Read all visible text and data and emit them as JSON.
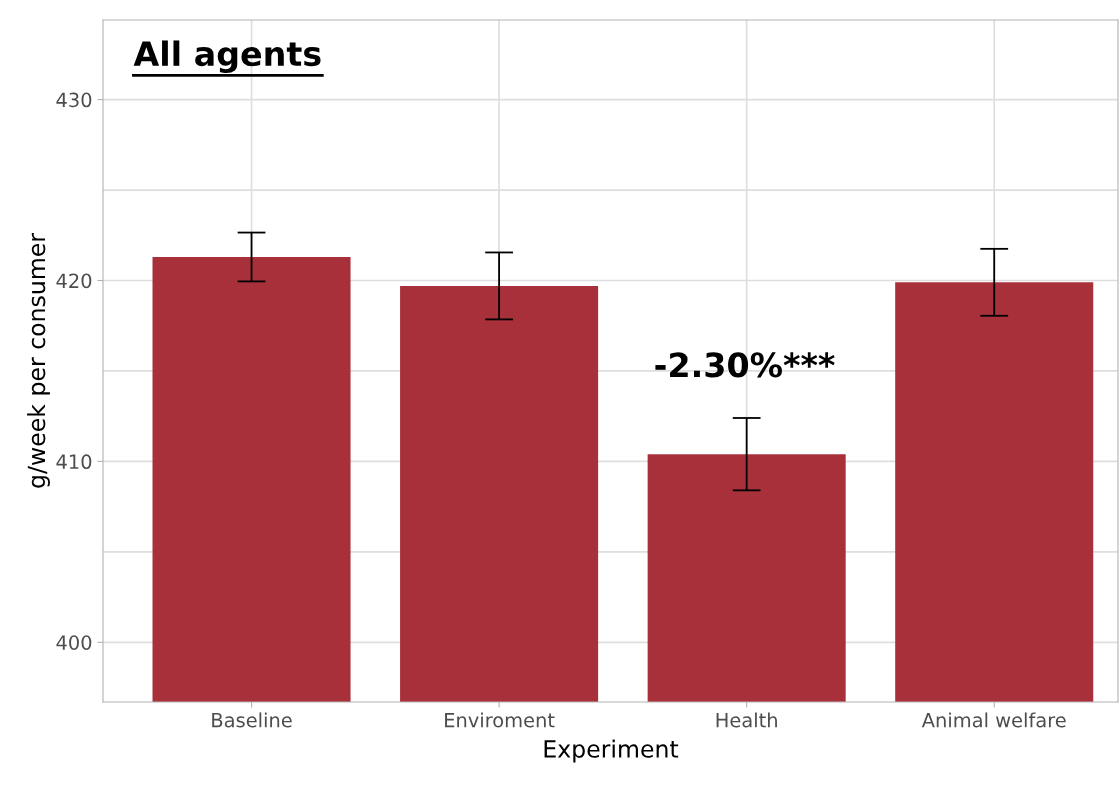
{
  "chart_data": {
    "type": "bar",
    "title": "All agents",
    "xlabel": "Experiment",
    "ylabel": "g/week per consumer",
    "categories": [
      "Baseline",
      "Enviroment",
      "Health",
      "Animal welfare"
    ],
    "values": [
      421.3,
      419.7,
      410.4,
      419.9
    ],
    "errors": [
      1.35,
      1.85,
      2.0,
      1.85
    ],
    "color": "#a8303a",
    "ylim": [
      396.7,
      434.4
    ],
    "yticks": [
      400,
      {
        "value": 405,
        "label": null
      },
      410,
      {
        "value": 415,
        "label": null
      },
      420,
      {
        "value": 425,
        "label": null
      },
      430
    ],
    "grid": true,
    "annotations": [
      "-2.30%***"
    ]
  }
}
